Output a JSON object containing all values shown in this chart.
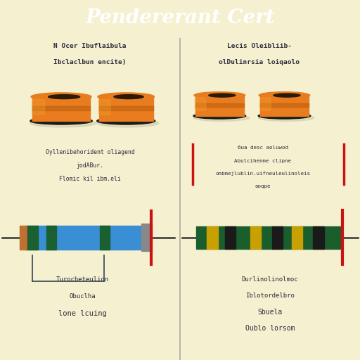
{
  "title": "Pendererant Cert",
  "title_bg": "#5a5555",
  "title_color": "#ffffff",
  "title_fontsize": 20,
  "bg_color": "#f5f0d0",
  "divider_color": "#999999",
  "left_panel": {
    "header_lines": [
      "N Ocer Ibuflaibula",
      "Ibclaclbun encite)"
    ],
    "sub_lines": [
      "Oyllenibehorident oliagend",
      "jodABur.",
      "Flomic kil ibm.eli"
    ],
    "bottom_lines": [
      "Turocheteulion",
      "Obuclha",
      "lone lcuing"
    ]
  },
  "right_panel": {
    "header_lines": [
      "Lecis Oleibliib-",
      "olDulinrsia loiqaolo"
    ],
    "sub_lines": [
      "6ua desc aoluwod",
      "Abulcihenme clipne",
      "onbmejlublin.uifneuleulinoleis",
      "ooqpe"
    ],
    "bottom_lines": [
      "Durlinolinolmoc",
      "Iblotordelbro",
      "Sbuela",
      "Oublo lorsom"
    ]
  },
  "inductor_main": "#e87c1e",
  "inductor_dark": "#1a1a1a",
  "inductor_mid": "#c06010",
  "inductor_light": "#f5a030",
  "inductor_shadow": "#d0d0c0",
  "left_res_body": "#3a8fd4",
  "left_res_bands": [
    "#e07020",
    "#e07020",
    "#1a6030",
    "#1a6030",
    "#1a6030",
    "#3a8fd4",
    "#1a6030",
    "#3a8fd4"
  ],
  "left_res_cap": "#888888",
  "left_res_cap2": "#c8a060",
  "right_res_body": "#1a5e2e",
  "right_res_bands": [
    "#1a5e2e",
    "#1a5e2e",
    "#1a5e2e",
    "#1a5e2e",
    "#1a5e2e",
    "#1a5e2e"
  ],
  "resistor_accent": "#cc1111",
  "bracket_color": "#334455"
}
